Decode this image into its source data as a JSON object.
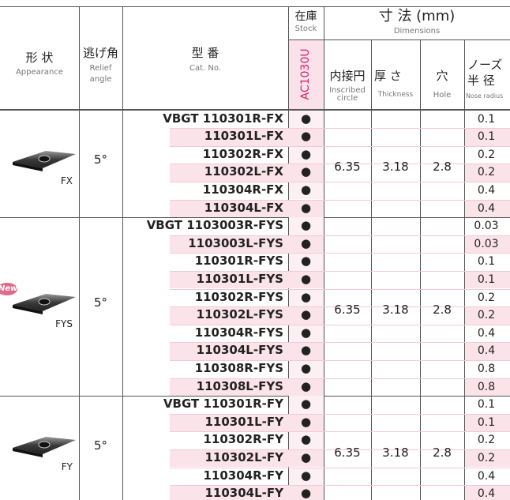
{
  "header": {
    "appearance": {
      "ja": "形 状",
      "en": "Appearance"
    },
    "relief_angle": {
      "ja": "逃げ角",
      "en": [
        "Relief",
        "angle"
      ]
    },
    "cat_no": {
      "ja": "型 番",
      "en": "Cat. No."
    },
    "stock": {
      "ja": "在庫",
      "en": "Stock"
    },
    "dimensions": {
      "ja": "寸 法 (mm)",
      "en": "Dimensions"
    },
    "grade": "AC1030U",
    "inscribed_circle": {
      "ja": "内接円",
      "en": [
        "Inscribed",
        "circle"
      ]
    },
    "thickness": {
      "ja": "厚 さ",
      "en": "Thickness"
    },
    "hole": {
      "ja": "穴",
      "en": "Hole"
    },
    "nose_radius": {
      "ja": [
        "ノーズ",
        "半 径"
      ],
      "en": "Nose radius"
    }
  },
  "groups": [
    {
      "label": "FX",
      "relief_angle": "5°",
      "inscribed_circle": "6.35",
      "thickness": "3.18",
      "hole": "2.8",
      "rows": [
        {
          "cat_no": "VBGT 110301R-FX",
          "stock": "●",
          "nose_radius": "0.1"
        },
        {
          "cat_no": "110301L-FX",
          "stock": "●",
          "nose_radius": "0.1"
        },
        {
          "cat_no": "110302R-FX",
          "stock": "●",
          "nose_radius": "0.2"
        },
        {
          "cat_no": "110302L-FX",
          "stock": "●",
          "nose_radius": "0.2"
        },
        {
          "cat_no": "110304R-FX",
          "stock": "●",
          "nose_radius": "0.4"
        },
        {
          "cat_no": "110304L-FX",
          "stock": "●",
          "nose_radius": "0.4"
        }
      ]
    },
    {
      "label": "FYS",
      "badge": "New",
      "relief_angle": "5°",
      "inscribed_circle": "6.35",
      "thickness": "3.18",
      "hole": "2.8",
      "rows": [
        {
          "cat_no": "VBGT 1103003R-FYS",
          "stock": "●",
          "nose_radius": "0.03"
        },
        {
          "cat_no": "1103003L-FYS",
          "stock": "●",
          "nose_radius": "0.03"
        },
        {
          "cat_no": "110301R-FYS",
          "stock": "●",
          "nose_radius": "0.1"
        },
        {
          "cat_no": "110301L-FYS",
          "stock": "●",
          "nose_radius": "0.1"
        },
        {
          "cat_no": "110302R-FYS",
          "stock": "●",
          "nose_radius": "0.2"
        },
        {
          "cat_no": "110302L-FYS",
          "stock": "●",
          "nose_radius": "0.2"
        },
        {
          "cat_no": "110304R-FYS",
          "stock": "●",
          "nose_radius": "0.4"
        },
        {
          "cat_no": "110304L-FYS",
          "stock": "●",
          "nose_radius": "0.4"
        },
        {
          "cat_no": "110308R-FYS",
          "stock": "●",
          "nose_radius": "0.8"
        },
        {
          "cat_no": "110308L-FYS",
          "stock": "●",
          "nose_radius": "0.8"
        }
      ]
    },
    {
      "label": "FY",
      "relief_angle": "5°",
      "inscribed_circle": "6.35",
      "thickness": "3.18",
      "hole": "2.8",
      "rows": [
        {
          "cat_no": "VBGT 110301R-FY",
          "stock": "●",
          "nose_radius": "0.1"
        },
        {
          "cat_no": "110301L-FY",
          "stock": "●",
          "nose_radius": "0.1"
        },
        {
          "cat_no": "110302R-FY",
          "stock": "●",
          "nose_radius": "0.2"
        },
        {
          "cat_no": "110302L-FY",
          "stock": "●",
          "nose_radius": "0.2"
        },
        {
          "cat_no": "110304R-FY",
          "stock": "●",
          "nose_radius": "0.4"
        },
        {
          "cat_no": "110304L-FY",
          "stock": "●",
          "nose_radius": "0.4"
        }
      ]
    }
  ]
}
